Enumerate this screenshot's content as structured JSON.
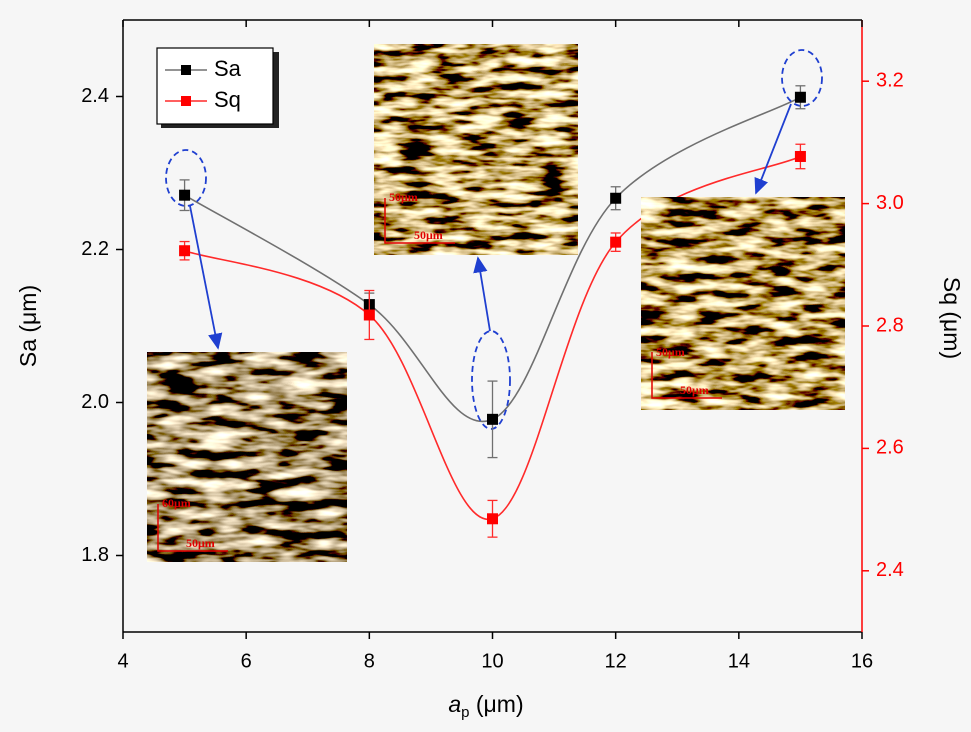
{
  "chart_data": {
    "type": "scatter",
    "xlabel": [
      "a",
      "p",
      " (μm)"
    ],
    "ylabel": "Sa (μm)",
    "y2label": "Sq (μm)",
    "x": [
      5,
      8,
      10,
      12,
      15
    ],
    "series": [
      {
        "name": "Sa",
        "color": "#000000",
        "line_color": "#707070",
        "values": [
          2.271,
          2.128,
          1.978,
          2.267,
          2.399
        ],
        "errors": [
          0.02,
          0.015,
          0.05,
          0.015,
          0.015
        ]
      },
      {
        "name": "Sq",
        "color": "#ff0000",
        "line_color": "#ff2a2a",
        "axis": "y2",
        "values": [
          2.923,
          2.818,
          2.485,
          2.937,
          3.077
        ],
        "errors": [
          0.015,
          0.04,
          0.03,
          0.015,
          0.02
        ]
      }
    ],
    "xlim": [
      4,
      16
    ],
    "xticks": [
      4,
      6,
      8,
      10,
      12,
      14,
      16
    ],
    "ylim": [
      1.7,
      2.5
    ],
    "yticks": [
      1.8,
      {
        "value": 2,
        "label": "2.0"
      },
      2.2,
      2.4
    ],
    "y2lim": [
      2.3,
      3.3
    ],
    "y2ticks": [
      2.4,
      2.6,
      2.8,
      {
        "value": 3,
        "label": "3.0"
      },
      3.2
    ],
    "y2color": "#ff0000",
    "legend": "upper left",
    "annotations": [
      "60μm",
      "50μm",
      "50μm",
      "50μm",
      "50μm",
      "50μm"
    ]
  }
}
